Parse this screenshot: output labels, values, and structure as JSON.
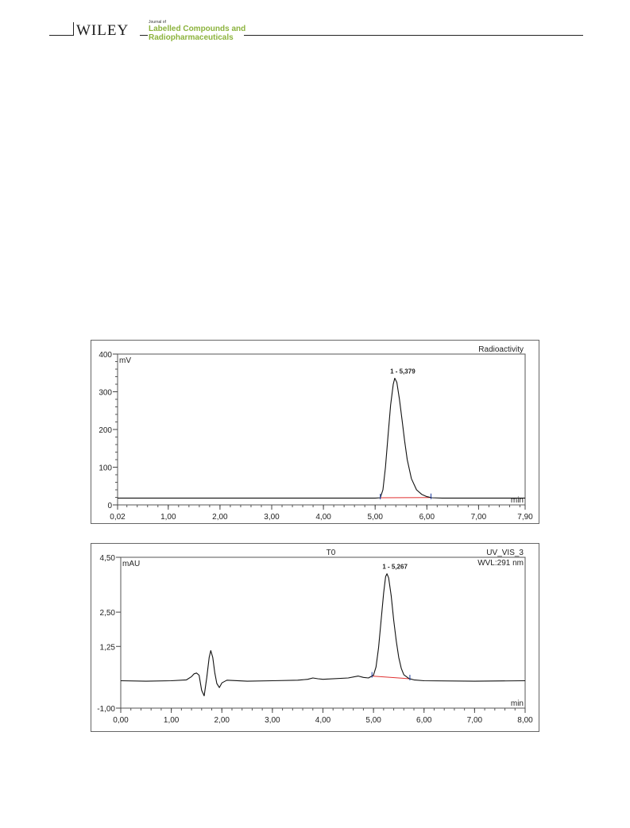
{
  "header": {
    "publisher": "WILEY",
    "journal_prefix": "Journal of",
    "journal_line1": "Labelled Compounds and",
    "journal_line2": "Radiopharmaceuticals"
  },
  "colors": {
    "journal_green": "#8cb33d",
    "trace": "#111111",
    "baseline_marker": "#e03030",
    "peak_marker": "#1a3aa0"
  },
  "chart_data": [
    {
      "type": "line",
      "title": "",
      "channel_label": "Radioactivity",
      "wavelength_label": "",
      "y_unit": "mV",
      "x_unit": "min",
      "xlim": [
        0.02,
        7.9
      ],
      "ylim": [
        0,
        400
      ],
      "x_ticks": [
        0.02,
        1.0,
        2.0,
        3.0,
        4.0,
        5.0,
        6.0,
        7.0,
        7.9
      ],
      "x_tick_labels": [
        "0,02",
        "1,00",
        "2,00",
        "3,00",
        "4,00",
        "5,00",
        "6,00",
        "7,00",
        "7,90"
      ],
      "y_ticks": [
        0,
        100,
        200,
        300,
        400
      ],
      "y_tick_labels": [
        "0",
        "100",
        "200",
        "300",
        "400"
      ],
      "y_minor_step": 20,
      "peak_annotation": "1 - 5,379",
      "peak_x": 5.379,
      "peak_y": 336,
      "integration_start": 5.1,
      "integration_end": 6.08,
      "x": [
        0.02,
        1.0,
        2.0,
        3.0,
        4.0,
        4.8,
        5.0,
        5.1,
        5.15,
        5.2,
        5.25,
        5.3,
        5.35,
        5.379,
        5.42,
        5.47,
        5.52,
        5.57,
        5.62,
        5.7,
        5.8,
        5.9,
        6.0,
        6.1,
        6.3,
        7.0,
        7.9
      ],
      "y": [
        18,
        18,
        18,
        18,
        18,
        18,
        18,
        19,
        40,
        100,
        185,
        265,
        320,
        336,
        325,
        280,
        225,
        170,
        120,
        70,
        40,
        28,
        22,
        19,
        18,
        18,
        18
      ]
    },
    {
      "type": "line",
      "title": "T0",
      "channel_label": "UV_VIS_3",
      "wavelength_label": "WVL:291 nm",
      "y_unit": "mAU",
      "x_unit": "min",
      "xlim": [
        0.0,
        8.0
      ],
      "ylim": [
        -1.0,
        4.5
      ],
      "x_ticks": [
        0,
        1,
        2,
        3,
        4,
        5,
        6,
        7,
        8
      ],
      "x_tick_labels": [
        "0,00",
        "1,00",
        "2,00",
        "3,00",
        "4,00",
        "5,00",
        "6,00",
        "7,00",
        "8,00"
      ],
      "y_ticks": [
        -1.0,
        1.25,
        2.5,
        4.5
      ],
      "y_tick_labels": [
        "-1,00",
        "1,25",
        "2,50",
        "4,50"
      ],
      "peak_annotation": "1 - 5,267",
      "peak_x": 5.267,
      "peak_y": 3.9,
      "integration_start": 4.97,
      "integration_end": 5.72,
      "x": [
        0.0,
        0.5,
        1.0,
        1.3,
        1.4,
        1.45,
        1.5,
        1.55,
        1.6,
        1.65,
        1.7,
        1.75,
        1.78,
        1.82,
        1.86,
        1.9,
        1.95,
        2.0,
        2.1,
        2.5,
        3.0,
        3.5,
        3.7,
        3.8,
        3.9,
        4.0,
        4.5,
        4.7,
        4.8,
        4.9,
        5.0,
        5.05,
        5.1,
        5.15,
        5.2,
        5.24,
        5.267,
        5.3,
        5.35,
        5.4,
        5.45,
        5.5,
        5.55,
        5.6,
        5.7,
        5.8,
        6.0,
        7.0,
        8.0
      ],
      "y": [
        0.0,
        -0.02,
        0.0,
        0.03,
        0.15,
        0.25,
        0.28,
        0.2,
        -0.35,
        -0.55,
        0.1,
        0.85,
        1.1,
        0.85,
        0.3,
        -0.1,
        -0.25,
        -0.08,
        0.02,
        -0.02,
        0.0,
        0.02,
        0.05,
        0.1,
        0.07,
        0.05,
        0.1,
        0.17,
        0.12,
        0.1,
        0.2,
        0.5,
        1.2,
        2.2,
        3.2,
        3.8,
        3.9,
        3.75,
        3.1,
        2.2,
        1.45,
        0.85,
        0.45,
        0.22,
        0.08,
        0.03,
        0.0,
        -0.02,
        0.0
      ]
    }
  ]
}
